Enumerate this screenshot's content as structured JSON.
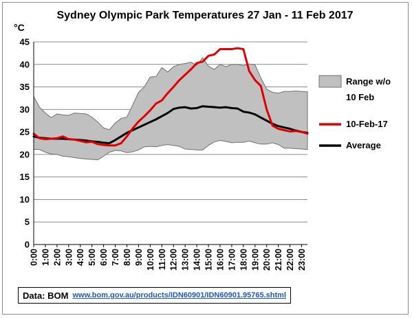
{
  "chart_data": {
    "type": "area",
    "title": "Sydney Olympic Park Temperatures 27 Jan - 11 Feb 2017",
    "ylabel": "°C",
    "ylim": [
      0,
      45
    ],
    "yticks": [
      0,
      5,
      10,
      15,
      20,
      25,
      30,
      35,
      40,
      45
    ],
    "x_tick_labels": [
      "0:00",
      "1:00",
      "2:00",
      "3:00",
      "4:00",
      "5:00",
      "6:00",
      "7:00",
      "8:00",
      "9:00",
      "10:00",
      "11:00",
      "12:00",
      "13:00",
      "14:00",
      "15:00",
      "16:00",
      "17:00",
      "18:00",
      "19:00",
      "20:00",
      "21:00",
      "22:00",
      "23:00"
    ],
    "x_half_hours": [
      0,
      0.5,
      1,
      1.5,
      2,
      2.5,
      3,
      3.5,
      4,
      4.5,
      5,
      5.5,
      6,
      6.5,
      7,
      7.5,
      8,
      8.5,
      9,
      9.5,
      10,
      10.5,
      11,
      11.5,
      12,
      12.5,
      13,
      13.5,
      14,
      14.5,
      15,
      15.5,
      16,
      16.5,
      17,
      17.5,
      18,
      18.5,
      19,
      19.5,
      20,
      20.5,
      21,
      21.5,
      22,
      22.5,
      23,
      23.5
    ],
    "grid": true,
    "legend_position": "right",
    "series": [
      {
        "name": "Range w/o 10 Feb",
        "kind": "range",
        "color": "#c0c0c0",
        "upper": [
          32.9,
          30.5,
          29.2,
          28.2,
          29.0,
          28.8,
          28.7,
          29.2,
          29.1,
          29.0,
          28.3,
          27.2,
          25.9,
          25.5,
          27.0,
          28.0,
          28.3,
          31.0,
          33.8,
          35.0,
          37.2,
          37.3,
          39.3,
          38.3,
          39.5,
          40.0,
          40.2,
          40.5,
          39.8,
          41.5,
          39.6,
          38.9,
          40.0,
          39.5,
          40.0,
          40.0,
          39.7,
          40.1,
          39.9,
          37.0,
          34.5,
          33.8,
          33.6,
          34.0,
          34.0,
          34.1,
          34.0,
          33.9
        ],
        "lower": [
          21.1,
          21.1,
          20.5,
          20.1,
          20.0,
          19.6,
          19.5,
          19.3,
          19.1,
          19.0,
          18.9,
          18.8,
          19.6,
          20.5,
          20.9,
          20.8,
          20.4,
          20.6,
          21.0,
          21.7,
          21.8,
          21.7,
          22.0,
          22.2,
          22.0,
          21.8,
          21.2,
          21.1,
          21.0,
          21.0,
          22.0,
          22.8,
          23.1,
          22.9,
          22.6,
          22.7,
          22.7,
          23.0,
          22.6,
          22.3,
          22.3,
          22.6,
          22.2,
          21.4,
          21.4,
          21.3,
          21.2,
          21.1
        ]
      },
      {
        "name": "10-Feb-17",
        "kind": "line",
        "color": "#e00000",
        "values": [
          24.6,
          23.6,
          23.4,
          23.5,
          23.6,
          24.0,
          23.4,
          23.3,
          23.0,
          22.7,
          22.8,
          22.3,
          22.1,
          22.0,
          22.0,
          22.5,
          24.0,
          25.8,
          27.3,
          28.5,
          29.8,
          31.3,
          32.0,
          33.6,
          35.0,
          36.5,
          37.7,
          38.9,
          40.3,
          40.6,
          41.9,
          42.2,
          43.4,
          43.4,
          43.4,
          43.6,
          43.4,
          38.5,
          36.5,
          35.2,
          30.0,
          26.4,
          25.7,
          25.4,
          25.1,
          25.2,
          25.0,
          24.6
        ]
      },
      {
        "name": "Average",
        "kind": "line",
        "color": "#000000",
        "values": [
          24.0,
          23.7,
          23.6,
          23.5,
          23.5,
          23.5,
          23.4,
          23.3,
          23.2,
          23.1,
          22.9,
          22.8,
          22.6,
          22.5,
          23.2,
          24.0,
          24.8,
          25.4,
          26.0,
          26.6,
          27.2,
          27.8,
          28.5,
          29.2,
          30.1,
          30.4,
          30.5,
          30.2,
          30.3,
          30.7,
          30.6,
          30.5,
          30.4,
          30.5,
          30.3,
          30.2,
          29.5,
          29.3,
          28.9,
          28.2,
          27.5,
          26.8,
          26.3,
          26.0,
          25.7,
          25.3,
          25.0,
          24.8
        ]
      }
    ]
  },
  "source": {
    "label": "Data: BOM",
    "link_text": "www.bom.gov.au/products/IDN60901/IDN60901.95765.shtml"
  }
}
